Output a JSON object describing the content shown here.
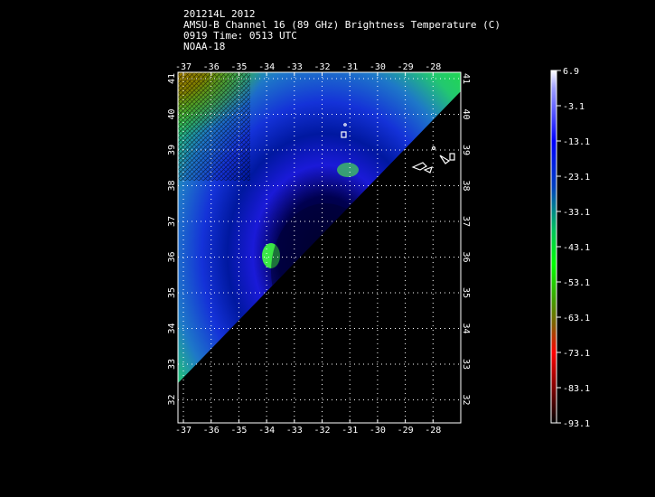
{
  "header": {
    "line1": "201214L 2012",
    "line2": "AMSU-B Channel 16 (89 GHz) Brightness Temperature (C)",
    "line3": "0919 Time: 0513 UTC",
    "line4": "NOAA-18"
  },
  "map": {
    "lon_labels": [
      "-37",
      "-36",
      "-35",
      "-34",
      "-33",
      "-32",
      "-31",
      "-30",
      "-29",
      "-28"
    ],
    "lat_labels": [
      "41",
      "40",
      "39",
      "38",
      "37",
      "36",
      "35",
      "34",
      "33",
      "32"
    ]
  },
  "colorbar": {
    "labels": [
      "6.9",
      "-3.1",
      "-13.1",
      "-23.1",
      "-33.1",
      "-43.1",
      "-53.1",
      "-63.1",
      "-73.1",
      "-83.1",
      "-93.1"
    ],
    "colors": {
      "top": "#ffffff",
      "upper": "#0000ff",
      "middle": "#00ff00",
      "lower": "#ff0000",
      "bottom": "#000000"
    }
  }
}
